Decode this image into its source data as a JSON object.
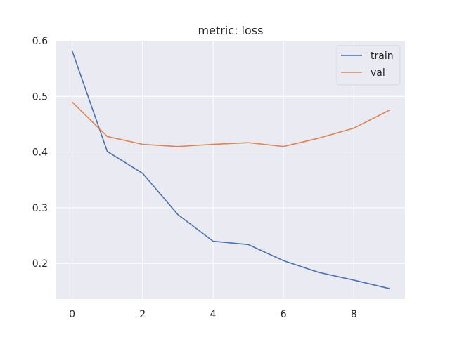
{
  "chart_data": {
    "type": "line",
    "title": "metric: loss",
    "xlabel": "",
    "ylabel": "",
    "x": [
      0,
      1,
      2,
      3,
      4,
      5,
      6,
      7,
      8,
      9
    ],
    "xlim": [
      -0.45,
      9.45
    ],
    "ylim": [
      0.136,
      0.6
    ],
    "xticks": [
      0,
      2,
      4,
      6,
      8
    ],
    "yticks": [
      0.2,
      0.3,
      0.4,
      0.5,
      0.6
    ],
    "grid": true,
    "legend_position": "top-right",
    "series": [
      {
        "name": "train",
        "color": "#4c72b0",
        "values": [
          0.582,
          0.401,
          0.362,
          0.288,
          0.24,
          0.234,
          0.205,
          0.184,
          0.17,
          0.155
        ]
      },
      {
        "name": "val",
        "color": "#dd8452",
        "values": [
          0.49,
          0.428,
          0.414,
          0.41,
          0.414,
          0.417,
          0.41,
          0.425,
          0.443,
          0.475
        ]
      }
    ]
  }
}
